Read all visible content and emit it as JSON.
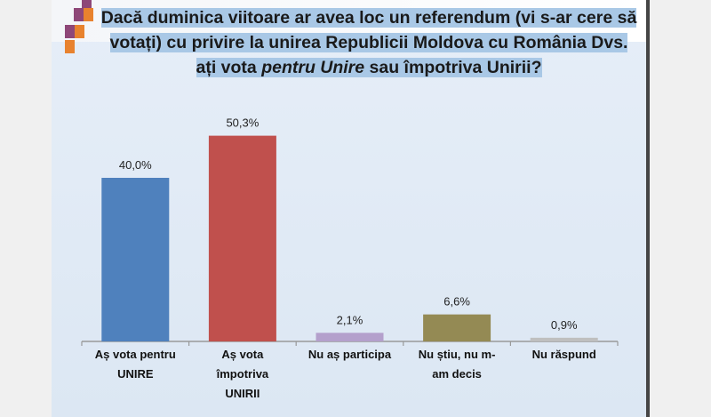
{
  "chart_data": {
    "type": "bar",
    "title_parts": [
      "Dacă duminica viitoare ar avea loc un referendum (vi s-ar cere să votați) cu privire la unirea Republicii Moldova cu România Dvs. ați vota ",
      "pentru Unire",
      "  sau împotriva Unirii?"
    ],
    "categories": [
      [
        "Aș vota pentru",
        "UNIRE"
      ],
      [
        "Aș vota",
        "împotriva",
        "UNIRII"
      ],
      [
        "Nu aș participa"
      ],
      [
        "Nu știu, nu m-",
        "am decis"
      ],
      [
        "Nu răspund"
      ]
    ],
    "values": [
      40.0,
      50.3,
      2.1,
      6.6,
      0.9
    ],
    "value_labels": [
      "40,0%",
      "50,3%",
      "2,1%",
      "6,6%",
      "0,9%"
    ],
    "colors": [
      "#4f81bd",
      "#c0504d",
      "#b4a0cc",
      "#948a54",
      "#bfbfbf"
    ],
    "xlabel": "",
    "ylabel": "",
    "ylim": [
      0,
      55
    ],
    "grid": false,
    "legend": "none"
  }
}
